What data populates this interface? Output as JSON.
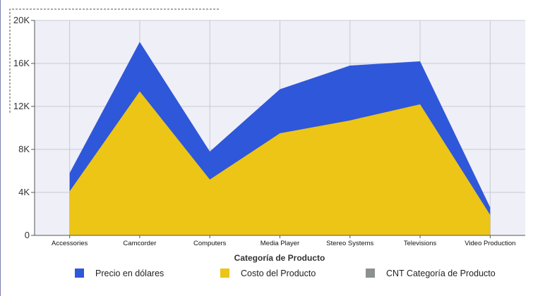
{
  "chart_data": {
    "type": "area",
    "xlabel": "Categoría de Producto",
    "ylabel": "",
    "ylim": [
      0,
      20000
    ],
    "yticks": [
      {
        "value": 0,
        "label": "0"
      },
      {
        "value": 4000,
        "label": "4K"
      },
      {
        "value": 8000,
        "label": "8K"
      },
      {
        "value": 12000,
        "label": "12K"
      },
      {
        "value": 16000,
        "label": "16K"
      },
      {
        "value": 20000,
        "label": "20K"
      }
    ],
    "categories": [
      "Accessories",
      "Camcorder",
      "Computers",
      "Media Player",
      "Stereo Systems",
      "Televisions",
      "Video Production"
    ],
    "grid": true,
    "legend_position": "bottom",
    "series": [
      {
        "name": "Precio en dólares",
        "color": "#2f57d9",
        "values": [
          5800,
          18000,
          7800,
          13600,
          15800,
          16200,
          2600
        ]
      },
      {
        "name": "Costo del Producto",
        "color": "#ecc517",
        "values": [
          4100,
          13400,
          5200,
          9500,
          10700,
          12200,
          1900
        ]
      },
      {
        "name": "CNT Categoría de Producto",
        "color": "#8c9190",
        "values": [
          1,
          1,
          1,
          1,
          1,
          1,
          1
        ]
      }
    ]
  }
}
